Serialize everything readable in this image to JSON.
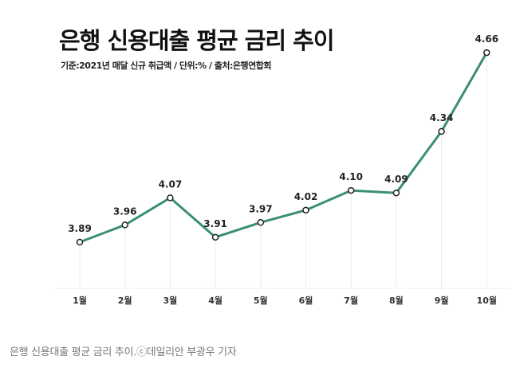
{
  "chart_data": {
    "type": "line",
    "title": "은행 신용대출 평균 금리 추이",
    "subtitle": "기준:2021년 매달 신규 취급액 / 단위:% / 출처:은행연합회",
    "categories": [
      "1월",
      "2월",
      "3월",
      "4월",
      "5월",
      "6월",
      "7월",
      "8월",
      "9월",
      "10월"
    ],
    "values": [
      3.89,
      3.96,
      4.07,
      3.91,
      3.97,
      4.02,
      4.1,
      4.09,
      4.34,
      4.66
    ],
    "value_labels": [
      "3.89",
      "3.96",
      "4.07",
      "3.91",
      "3.97",
      "4.02",
      "4.10",
      "4.09",
      "4.34",
      "4.66"
    ],
    "xlabel": "",
    "ylabel": "",
    "grid": "vertical drop lines",
    "line_color": "#3a8f72"
  },
  "caption": "은행 신용대출 평균 금리 추이.ⓒ데일리안 부광우 기자"
}
